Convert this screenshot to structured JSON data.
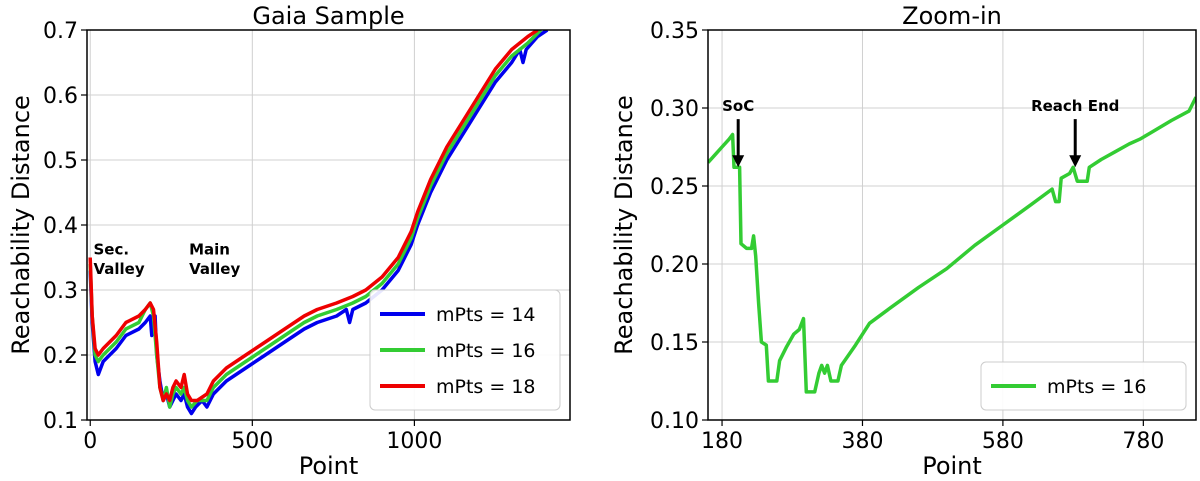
{
  "chart_data": [
    {
      "type": "line",
      "title": "Gaia Sample",
      "xlabel": "Point",
      "ylabel": "Reachability Distance",
      "xlim": [
        -10,
        1480
      ],
      "ylim": [
        0.1,
        0.7
      ],
      "xticks": [
        0,
        500,
        1000
      ],
      "yticks": [
        0.1,
        0.2,
        0.3,
        0.4,
        0.5,
        0.6,
        0.7
      ],
      "grid": true,
      "legend_position": "bottom-right",
      "annotations": [
        {
          "text": "Sec.",
          "x": 10,
          "y": 0.355
        },
        {
          "text": "Valley",
          "x": 10,
          "y": 0.325
        },
        {
          "text": "Main",
          "x": 305,
          "y": 0.355
        },
        {
          "text": "Valley",
          "x": 305,
          "y": 0.325
        }
      ],
      "series": [
        {
          "name": "mPts = 14",
          "color": "#0000ee",
          "points": [
            [
              0,
              0.33
            ],
            [
              6,
              0.25
            ],
            [
              15,
              0.19
            ],
            [
              25,
              0.17
            ],
            [
              40,
              0.19
            ],
            [
              60,
              0.2
            ],
            [
              80,
              0.21
            ],
            [
              110,
              0.23
            ],
            [
              150,
              0.24
            ],
            [
              170,
              0.25
            ],
            [
              185,
              0.26
            ],
            [
              190,
              0.23
            ],
            [
              200,
              0.26
            ],
            [
              205,
              0.2
            ],
            [
              215,
              0.16
            ],
            [
              225,
              0.13
            ],
            [
              235,
              0.14
            ],
            [
              245,
              0.12
            ],
            [
              255,
              0.13
            ],
            [
              265,
              0.14
            ],
            [
              280,
              0.13
            ],
            [
              290,
              0.14
            ],
            [
              300,
              0.12
            ],
            [
              312,
              0.11
            ],
            [
              325,
              0.12
            ],
            [
              345,
              0.13
            ],
            [
              360,
              0.12
            ],
            [
              380,
              0.14
            ],
            [
              420,
              0.16
            ],
            [
              480,
              0.18
            ],
            [
              540,
              0.2
            ],
            [
              600,
              0.22
            ],
            [
              660,
              0.24
            ],
            [
              700,
              0.25
            ],
            [
              760,
              0.26
            ],
            [
              790,
              0.27
            ],
            [
              800,
              0.25
            ],
            [
              810,
              0.27
            ],
            [
              850,
              0.28
            ],
            [
              900,
              0.3
            ],
            [
              950,
              0.33
            ],
            [
              990,
              0.37
            ],
            [
              1010,
              0.4
            ],
            [
              1050,
              0.45
            ],
            [
              1100,
              0.5
            ],
            [
              1150,
              0.54
            ],
            [
              1200,
              0.58
            ],
            [
              1250,
              0.62
            ],
            [
              1300,
              0.65
            ],
            [
              1325,
              0.67
            ],
            [
              1335,
              0.65
            ],
            [
              1345,
              0.67
            ],
            [
              1380,
              0.69
            ],
            [
              1410,
              0.7
            ]
          ]
        },
        {
          "name": "mPts = 16",
          "color": "#33cc33",
          "points": [
            [
              0,
              0.34
            ],
            [
              6,
              0.26
            ],
            [
              15,
              0.2
            ],
            [
              25,
              0.19
            ],
            [
              40,
              0.2
            ],
            [
              60,
              0.21
            ],
            [
              80,
              0.22
            ],
            [
              110,
              0.24
            ],
            [
              150,
              0.25
            ],
            [
              170,
              0.27
            ],
            [
              185,
              0.28
            ],
            [
              195,
              0.26
            ],
            [
              205,
              0.2
            ],
            [
              215,
              0.15
            ],
            [
              225,
              0.13
            ],
            [
              235,
              0.15
            ],
            [
              245,
              0.12
            ],
            [
              255,
              0.14
            ],
            [
              265,
              0.15
            ],
            [
              280,
              0.14
            ],
            [
              290,
              0.15
            ],
            [
              300,
              0.13
            ],
            [
              312,
              0.12
            ],
            [
              330,
              0.13
            ],
            [
              360,
              0.13
            ],
            [
              380,
              0.15
            ],
            [
              420,
              0.17
            ],
            [
              480,
              0.19
            ],
            [
              540,
              0.21
            ],
            [
              600,
              0.23
            ],
            [
              660,
              0.25
            ],
            [
              700,
              0.26
            ],
            [
              760,
              0.27
            ],
            [
              810,
              0.28
            ],
            [
              850,
              0.29
            ],
            [
              900,
              0.31
            ],
            [
              950,
              0.34
            ],
            [
              990,
              0.38
            ],
            [
              1010,
              0.41
            ],
            [
              1050,
              0.46
            ],
            [
              1100,
              0.51
            ],
            [
              1150,
              0.55
            ],
            [
              1200,
              0.59
            ],
            [
              1250,
              0.63
            ],
            [
              1300,
              0.66
            ],
            [
              1350,
              0.68
            ],
            [
              1390,
              0.7
            ]
          ]
        },
        {
          "name": "mPts = 18",
          "color": "#ee0000",
          "points": [
            [
              0,
              0.35
            ],
            [
              6,
              0.26
            ],
            [
              15,
              0.21
            ],
            [
              25,
              0.2
            ],
            [
              40,
              0.21
            ],
            [
              60,
              0.22
            ],
            [
              80,
              0.23
            ],
            [
              110,
              0.25
            ],
            [
              150,
              0.26
            ],
            [
              170,
              0.27
            ],
            [
              185,
              0.28
            ],
            [
              195,
              0.27
            ],
            [
              205,
              0.22
            ],
            [
              215,
              0.15
            ],
            [
              225,
              0.13
            ],
            [
              235,
              0.14
            ],
            [
              245,
              0.13
            ],
            [
              255,
              0.15
            ],
            [
              265,
              0.16
            ],
            [
              280,
              0.15
            ],
            [
              290,
              0.17
            ],
            [
              300,
              0.14
            ],
            [
              312,
              0.13
            ],
            [
              330,
              0.13
            ],
            [
              360,
              0.14
            ],
            [
              380,
              0.16
            ],
            [
              420,
              0.18
            ],
            [
              480,
              0.2
            ],
            [
              540,
              0.22
            ],
            [
              600,
              0.24
            ],
            [
              660,
              0.26
            ],
            [
              700,
              0.27
            ],
            [
              760,
              0.28
            ],
            [
              810,
              0.29
            ],
            [
              850,
              0.3
            ],
            [
              900,
              0.32
            ],
            [
              950,
              0.35
            ],
            [
              990,
              0.39
            ],
            [
              1010,
              0.42
            ],
            [
              1050,
              0.47
            ],
            [
              1100,
              0.52
            ],
            [
              1150,
              0.56
            ],
            [
              1200,
              0.6
            ],
            [
              1250,
              0.64
            ],
            [
              1300,
              0.67
            ],
            [
              1350,
              0.69
            ],
            [
              1380,
              0.7
            ]
          ]
        }
      ]
    },
    {
      "type": "line",
      "title": "Zoom-in",
      "xlabel": "Point",
      "ylabel": "Reachability Distance",
      "xlim": [
        160,
        855
      ],
      "ylim": [
        0.1,
        0.35
      ],
      "xticks": [
        180,
        380,
        580,
        780
      ],
      "yticks": [
        0.1,
        0.15,
        0.2,
        0.25,
        0.3,
        0.35
      ],
      "grid": true,
      "legend_position": "bottom-right",
      "annotations": [
        {
          "text": "SoC",
          "x": 203,
          "y": 0.262,
          "text_y": 0.298
        },
        {
          "text": "Reach End",
          "x": 683,
          "y": 0.262,
          "text_y": 0.298
        }
      ],
      "series": [
        {
          "name": "mPts = 16",
          "color": "#33cc33",
          "points": [
            [
              160,
              0.265
            ],
            [
              170,
              0.27
            ],
            [
              180,
              0.275
            ],
            [
              190,
              0.28
            ],
            [
              195,
              0.283
            ],
            [
              197,
              0.262
            ],
            [
              205,
              0.262
            ],
            [
              207,
              0.213
            ],
            [
              215,
              0.21
            ],
            [
              222,
              0.21
            ],
            [
              225,
              0.218
            ],
            [
              228,
              0.205
            ],
            [
              232,
              0.175
            ],
            [
              236,
              0.15
            ],
            [
              243,
              0.148
            ],
            [
              246,
              0.125
            ],
            [
              258,
              0.125
            ],
            [
              262,
              0.138
            ],
            [
              272,
              0.147
            ],
            [
              282,
              0.155
            ],
            [
              290,
              0.158
            ],
            [
              296,
              0.165
            ],
            [
              300,
              0.118
            ],
            [
              312,
              0.118
            ],
            [
              318,
              0.13
            ],
            [
              322,
              0.135
            ],
            [
              326,
              0.13
            ],
            [
              330,
              0.135
            ],
            [
              335,
              0.125
            ],
            [
              345,
              0.125
            ],
            [
              350,
              0.135
            ],
            [
              370,
              0.148
            ],
            [
              390,
              0.162
            ],
            [
              420,
              0.172
            ],
            [
              460,
              0.185
            ],
            [
              500,
              0.197
            ],
            [
              540,
              0.212
            ],
            [
              580,
              0.225
            ],
            [
              620,
              0.238
            ],
            [
              650,
              0.248
            ],
            [
              655,
              0.24
            ],
            [
              660,
              0.24
            ],
            [
              663,
              0.255
            ],
            [
              675,
              0.258
            ],
            [
              680,
              0.262
            ],
            [
              686,
              0.253
            ],
            [
              700,
              0.253
            ],
            [
              703,
              0.262
            ],
            [
              720,
              0.267
            ],
            [
              740,
              0.272
            ],
            [
              760,
              0.277
            ],
            [
              775,
              0.28
            ],
            [
              790,
              0.284
            ],
            [
              820,
              0.292
            ],
            [
              845,
              0.298
            ],
            [
              855,
              0.307
            ]
          ]
        }
      ]
    }
  ]
}
